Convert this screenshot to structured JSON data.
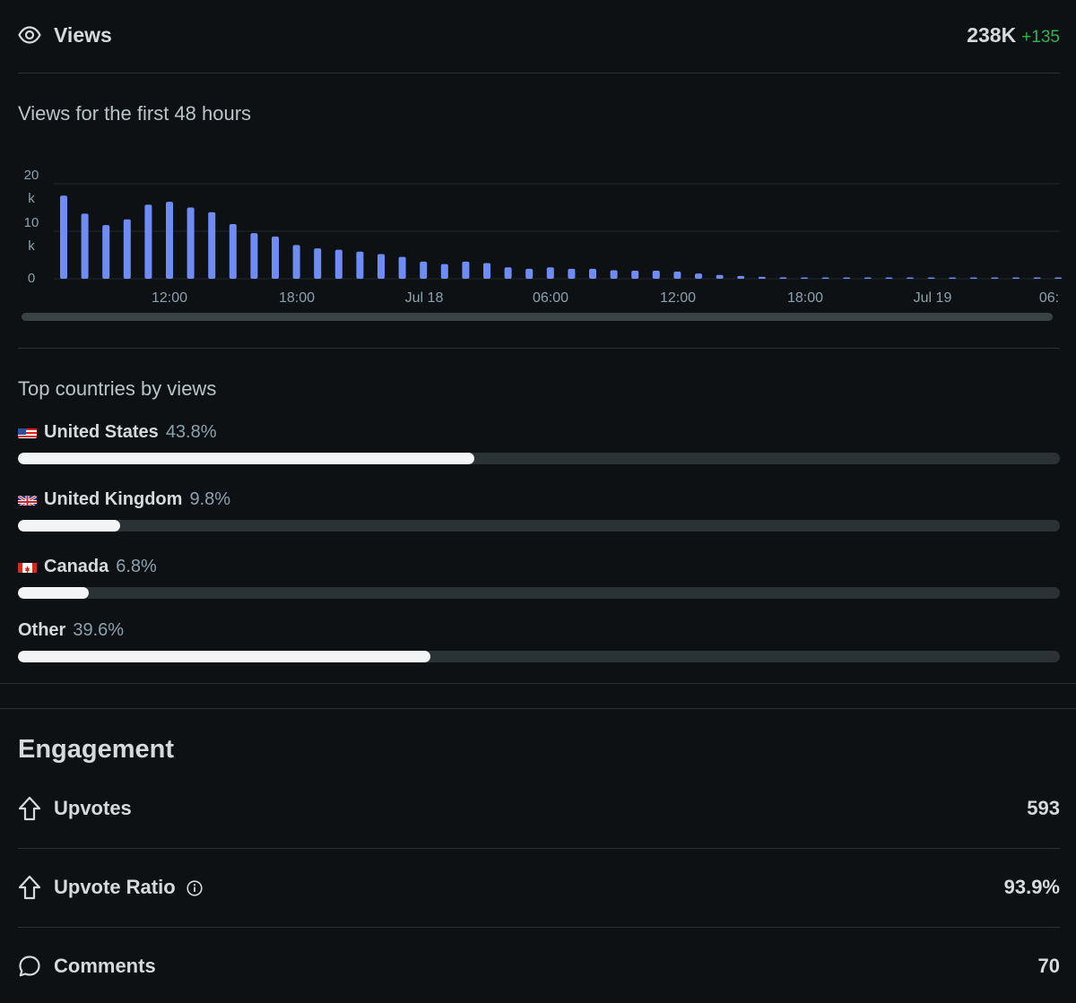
{
  "views": {
    "label": "Views",
    "value": "238K",
    "delta": "+135",
    "icon": "eye-icon"
  },
  "chart_title": "Views for the first 48 hours",
  "chart_data": {
    "type": "bar",
    "title": "Views for the first 48 hours",
    "y_ticks": [
      "20\nk",
      "10\nk",
      "0"
    ],
    "ylim": [
      0,
      20000
    ],
    "x_tick_labels": [
      "12:00",
      "18:00",
      "Jul 18",
      "06:00",
      "12:00",
      "18:00",
      "Jul 19",
      "06:"
    ],
    "values": [
      17500,
      13700,
      11300,
      12500,
      15600,
      16200,
      15000,
      14000,
      11500,
      9600,
      8900,
      7100,
      6400,
      6100,
      5700,
      5200,
      4600,
      3600,
      3100,
      3600,
      3300,
      2400,
      2100,
      2400,
      2100,
      2100,
      1800,
      1700,
      1700,
      1500,
      1100,
      800,
      600,
      400,
      300,
      250,
      200,
      180,
      160,
      150,
      140,
      130,
      120,
      110,
      100,
      90,
      90,
      80
    ],
    "color": "#6e8cf4",
    "grid": true
  },
  "countries_title": "Top countries by views",
  "countries": [
    {
      "name": "United States",
      "pct": "43.8%",
      "value": 43.8,
      "flag": "us"
    },
    {
      "name": "United Kingdom",
      "pct": "9.8%",
      "value": 9.8,
      "flag": "gb"
    },
    {
      "name": "Canada",
      "pct": "6.8%",
      "value": 6.8,
      "flag": "ca"
    },
    {
      "name": "Other",
      "pct": "39.6%",
      "value": 39.6,
      "flag": ""
    }
  ],
  "engagement": {
    "title": "Engagement",
    "items": [
      {
        "label": "Upvotes",
        "value": "593",
        "icon": "upvote-arrow-icon"
      },
      {
        "label": "Upvote Ratio",
        "value": "93.9%",
        "icon": "upvote-arrow-icon",
        "info": true
      },
      {
        "label": "Comments",
        "value": "70",
        "icon": "comment-bubble-icon"
      }
    ]
  },
  "colors": {
    "background": "#0e1113",
    "accent_bar": "#6e8cf4",
    "delta_green": "#2fb24f",
    "progress_fill": "#f2f4f5",
    "progress_track": "#2a3236"
  }
}
